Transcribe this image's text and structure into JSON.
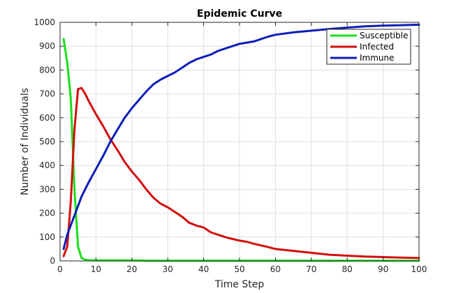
{
  "chart_data": {
    "type": "line",
    "title": "Epidemic Curve",
    "xlabel": "Time Step",
    "ylabel": "Number of Individuals",
    "xlim": [
      0,
      100
    ],
    "ylim": [
      0,
      1000
    ],
    "xticks": [
      0,
      10,
      20,
      30,
      40,
      50,
      60,
      70,
      80,
      90,
      100
    ],
    "yticks": [
      0,
      100,
      200,
      300,
      400,
      500,
      600,
      700,
      800,
      900,
      1000
    ],
    "grid": true,
    "legend_position": "top-right",
    "series": [
      {
        "name": "Susceptible",
        "color": "#1adf1a",
        "x": [
          1,
          2,
          3,
          4,
          5,
          6,
          7,
          8,
          10,
          15,
          20,
          25,
          30,
          40,
          50,
          60,
          70,
          80,
          90,
          100
        ],
        "y": [
          930,
          830,
          680,
          300,
          60,
          12,
          5,
          3,
          2,
          2,
          2,
          1,
          1,
          1,
          1,
          1,
          1,
          1,
          1,
          1
        ]
      },
      {
        "name": "Infected",
        "color": "#d40e0e",
        "x": [
          1,
          2,
          3,
          4,
          5,
          6,
          7,
          8,
          10,
          12,
          14,
          16,
          18,
          20,
          22,
          24,
          26,
          28,
          30,
          32,
          34,
          36,
          38,
          40,
          42,
          44,
          46,
          48,
          50,
          52,
          54,
          56,
          58,
          60,
          65,
          70,
          75,
          80,
          85,
          90,
          95,
          100
        ],
        "y": [
          20,
          60,
          250,
          550,
          720,
          725,
          700,
          670,
          615,
          565,
          510,
          465,
          415,
          375,
          340,
          300,
          265,
          240,
          225,
          205,
          185,
          160,
          148,
          140,
          120,
          110,
          100,
          92,
          85,
          80,
          72,
          65,
          58,
          50,
          42,
          34,
          26,
          22,
          18,
          16,
          14,
          12
        ]
      },
      {
        "name": "Immune",
        "color": "#0d1fb8",
        "x": [
          1,
          2,
          3,
          4,
          5,
          6,
          8,
          10,
          12,
          14,
          16,
          18,
          20,
          22,
          24,
          26,
          28,
          30,
          32,
          34,
          36,
          38,
          40,
          42,
          44,
          46,
          48,
          50,
          52,
          54,
          56,
          58,
          60,
          65,
          70,
          75,
          80,
          85,
          90,
          95,
          100
        ],
        "y": [
          50,
          110,
          150,
          190,
          230,
          270,
          330,
          385,
          440,
          500,
          550,
          600,
          640,
          675,
          710,
          740,
          760,
          775,
          790,
          810,
          830,
          845,
          855,
          865,
          880,
          890,
          900,
          910,
          915,
          920,
          930,
          940,
          948,
          958,
          965,
          972,
          978,
          983,
          986,
          988,
          990
        ]
      }
    ]
  }
}
